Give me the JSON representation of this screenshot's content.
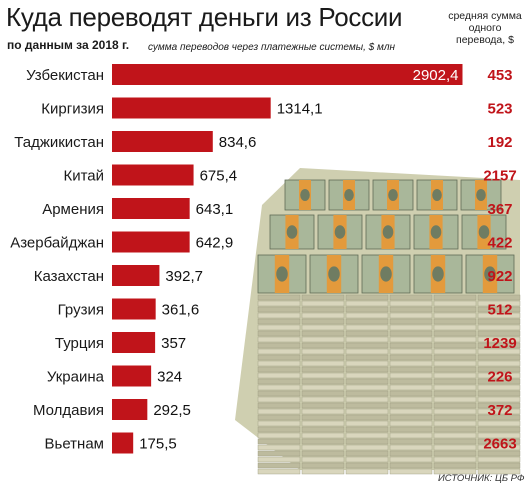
{
  "title": "Куда переводят деньги из России",
  "subtitle": "по данным за 2018 г.",
  "units_note": "сумма переводов через платежные системы, $ млн",
  "avg_header": "средняя сумма одного перевода, $",
  "source": "ИСТОЧНИК: ЦБ РФ",
  "colors": {
    "bar": "#c0141a",
    "avg_text": "#c0141a",
    "label_on_bar": "#ffffff"
  },
  "chart_data": {
    "type": "bar",
    "orientation": "horizontal",
    "categories": [
      "Узбекистан",
      "Киргизия",
      "Таджикистан",
      "Китай",
      "Армения",
      "Азербайджан",
      "Казахстан",
      "Грузия",
      "Турция",
      "Украина",
      "Молдавия",
      "Вьетнам"
    ],
    "value_labels": [
      "2902,4",
      "1314,1",
      "834,6",
      "675,4",
      "643,1",
      "642,9",
      "392,7",
      "361,6",
      "357",
      "324",
      "292,5",
      "175,5"
    ],
    "series": [
      {
        "values": [
          2902.4,
          1314.1,
          834.6,
          675.4,
          643.1,
          642.9,
          392.7,
          361.6,
          357,
          324,
          292.5,
          175.5
        ]
      },
      {
        "values": [
          453,
          523,
          192,
          2157,
          367,
          422,
          922,
          512,
          1239,
          226,
          372,
          2663
        ]
      }
    ],
    "grid": false,
    "legend": "none"
  }
}
